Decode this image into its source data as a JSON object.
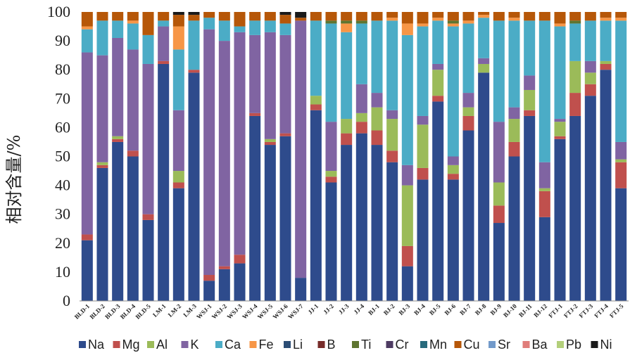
{
  "chart_data": {
    "type": "stacked-bar",
    "ylabel": "相对含量/%",
    "ylim": [
      0,
      100
    ],
    "yticks": [
      0,
      10,
      20,
      30,
      40,
      50,
      60,
      70,
      80,
      90,
      100
    ],
    "legend_position": "bottom",
    "categories": [
      "BLD-1",
      "BLD-2",
      "BLD-3",
      "BLD-4",
      "BLD-5",
      "LM-1",
      "LM-2",
      "LM-3",
      "WSJ-1",
      "WSJ-2",
      "WSJ-3",
      "WSJ-4",
      "WSJ-5",
      "WSJ-6",
      "WSJ-7",
      "JJ-1",
      "JJ-2",
      "JJ-3",
      "JJ-4",
      "BJ-1",
      "BJ-2",
      "BJ-3",
      "BJ-4",
      "BJ-5",
      "BJ-6",
      "BJ-7",
      "BJ-8",
      "BJ-9",
      "BJ-10",
      "BJ-11",
      "BJ-12",
      "FTJ-1",
      "FTJ-2",
      "FTJ-3",
      "FTJ-4",
      "FTJ-5"
    ],
    "series": [
      {
        "name": "Na",
        "color": "#2e4b8c",
        "values": [
          21,
          46,
          55,
          50,
          28,
          82,
          39,
          79,
          7,
          11,
          13,
          64,
          54,
          57,
          8,
          66,
          41,
          54,
          58,
          54,
          48,
          12,
          42,
          69,
          42,
          59,
          79,
          27,
          50,
          64,
          29,
          56,
          64,
          71,
          80,
          39
        ]
      },
      {
        "name": "Mg",
        "color": "#c0504d",
        "values": [
          2,
          1,
          1,
          2,
          2,
          1,
          2,
          1,
          2,
          1,
          3,
          1,
          1,
          1,
          0,
          2,
          2,
          4,
          4,
          5,
          4,
          7,
          4,
          2,
          2,
          5,
          0,
          6,
          5,
          2,
          9,
          1,
          8,
          4,
          2,
          9
        ]
      },
      {
        "name": "Al",
        "color": "#9bbb59",
        "values": [
          0,
          1,
          1,
          0,
          0,
          0,
          4,
          0,
          0,
          0,
          0,
          0,
          1,
          0,
          0,
          3,
          2,
          5,
          3,
          8,
          11,
          21,
          15,
          9,
          3,
          3,
          3,
          8,
          8,
          7,
          1,
          5,
          11,
          4,
          1,
          1
        ]
      },
      {
        "name": "K",
        "color": "#8064a2",
        "values": [
          63,
          37,
          34,
          35,
          52,
          12,
          21,
          0,
          85,
          78,
          77,
          27,
          37,
          34,
          89,
          0,
          17,
          0,
          10,
          5,
          3,
          7,
          3,
          2,
          3,
          5,
          2,
          21,
          4,
          5,
          9,
          1,
          0,
          4,
          0,
          6
        ]
      },
      {
        "name": "Ca",
        "color": "#4bacc6",
        "values": [
          8,
          12,
          6,
          9,
          10,
          2,
          21,
          17,
          4,
          7,
          2,
          5,
          4,
          4,
          0,
          26,
          34,
          30,
          21,
          25,
          31,
          45,
          31,
          15,
          45,
          24,
          14,
          35,
          30,
          19,
          49,
          32,
          13,
          14,
          14,
          42
        ]
      },
      {
        "name": "Fe",
        "color": "#f79646",
        "values": [
          1,
          0,
          0,
          1,
          0,
          0,
          8,
          0,
          0,
          0,
          0,
          0,
          0,
          0,
          0,
          0,
          0,
          3,
          0,
          0,
          1,
          4,
          1,
          1,
          1,
          1,
          1,
          0,
          1,
          0,
          0,
          1,
          0,
          0,
          1,
          1
        ]
      },
      {
        "name": "Li",
        "color": "#2c4d75",
        "values": [
          0,
          0,
          0,
          0,
          0,
          0,
          0,
          0,
          0,
          0,
          0,
          0,
          0,
          0,
          0,
          0,
          0,
          0,
          0,
          0,
          0,
          0,
          0,
          0,
          0,
          0,
          0,
          0,
          0,
          0,
          0,
          0,
          0,
          0,
          0,
          0
        ]
      },
      {
        "name": "B",
        "color": "#772c2a",
        "values": [
          0,
          0,
          0,
          0,
          0,
          0,
          0,
          0,
          0,
          0,
          0,
          0,
          0,
          0,
          0,
          0,
          0,
          0,
          0,
          0,
          0,
          0,
          0,
          0,
          0,
          0,
          0,
          0,
          0,
          0,
          0,
          0,
          0,
          0,
          0,
          0
        ]
      },
      {
        "name": "Ti",
        "color": "#5f7530",
        "values": [
          0,
          0,
          0,
          0,
          0,
          0,
          0,
          0,
          0,
          0,
          0,
          0,
          0,
          0,
          0,
          0,
          1,
          1,
          1,
          0,
          0,
          0,
          0,
          0,
          1,
          0,
          0,
          0,
          0,
          0,
          0,
          0,
          1,
          0,
          0,
          0
        ]
      },
      {
        "name": "Cr",
        "color": "#4d3b62",
        "values": [
          0,
          0,
          0,
          0,
          0,
          0,
          0,
          0,
          0,
          0,
          0,
          0,
          0,
          0,
          0,
          0,
          0,
          0,
          0,
          0,
          0,
          0,
          0,
          0,
          0,
          0,
          0,
          0,
          0,
          0,
          0,
          0,
          0,
          0,
          0,
          0
        ]
      },
      {
        "name": "Mn",
        "color": "#276a7c",
        "values": [
          0,
          0,
          0,
          0,
          0,
          0,
          0,
          0,
          0,
          0,
          0,
          0,
          0,
          0,
          0,
          0,
          0,
          0,
          0,
          0,
          0,
          0,
          0,
          0,
          0,
          0,
          0,
          0,
          0,
          0,
          0,
          0,
          0,
          0,
          0,
          0
        ]
      },
      {
        "name": "Cu",
        "color": "#b65708",
        "values": [
          5,
          3,
          3,
          3,
          8,
          3,
          4,
          2,
          2,
          3,
          5,
          3,
          3,
          3,
          1,
          3,
          3,
          3,
          3,
          3,
          2,
          4,
          4,
          2,
          3,
          3,
          1,
          3,
          2,
          3,
          3,
          4,
          3,
          3,
          2,
          2
        ]
      },
      {
        "name": "Sr",
        "color": "#729aca",
        "values": [
          0,
          0,
          0,
          0,
          0,
          0,
          0,
          0,
          0,
          0,
          0,
          0,
          0,
          0,
          0,
          0,
          0,
          0,
          0,
          0,
          0,
          0,
          0,
          0,
          0,
          0,
          0,
          0,
          0,
          0,
          0,
          0,
          0,
          0,
          0,
          0
        ]
      },
      {
        "name": "Ba",
        "color": "#e07d7a",
        "values": [
          0,
          0,
          0,
          0,
          0,
          0,
          0,
          0,
          0,
          0,
          0,
          0,
          0,
          0,
          0,
          0,
          0,
          0,
          0,
          0,
          0,
          0,
          0,
          0,
          0,
          0,
          0,
          0,
          0,
          0,
          0,
          0,
          0,
          0,
          0,
          0
        ]
      },
      {
        "name": "Pb",
        "color": "#b3cf7a",
        "values": [
          0,
          0,
          0,
          0,
          0,
          0,
          0,
          0,
          0,
          0,
          0,
          0,
          0,
          0,
          0,
          0,
          0,
          0,
          0,
          0,
          0,
          0,
          0,
          0,
          0,
          0,
          0,
          0,
          0,
          0,
          0,
          0,
          0,
          0,
          0,
          0
        ]
      },
      {
        "name": "Ni",
        "color": "#1a1a1a",
        "values": [
          0,
          0,
          0,
          0,
          0,
          0,
          1,
          1,
          0,
          0,
          0,
          0,
          0,
          1,
          2,
          0,
          0,
          0,
          0,
          0,
          0,
          0,
          0,
          0,
          0,
          0,
          0,
          0,
          0,
          0,
          0,
          0,
          0,
          0,
          0,
          0
        ]
      }
    ]
  }
}
